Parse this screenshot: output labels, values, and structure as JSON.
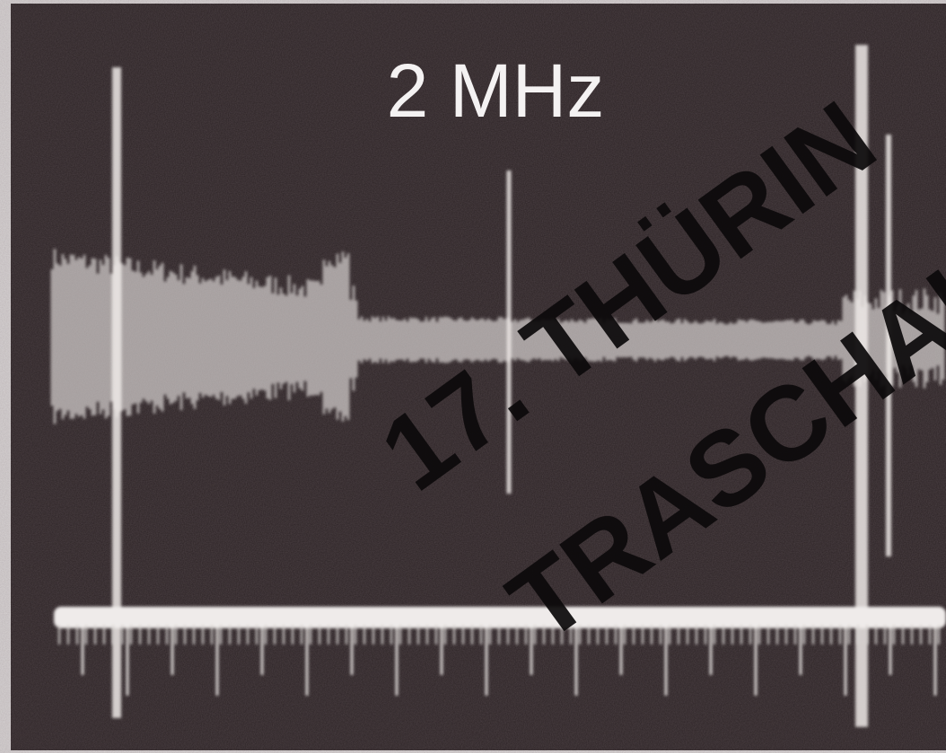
{
  "label": "2 MHz",
  "watermark": {
    "line1": "17. THÜRIN",
    "line2": "TRASCHAI"
  }
}
